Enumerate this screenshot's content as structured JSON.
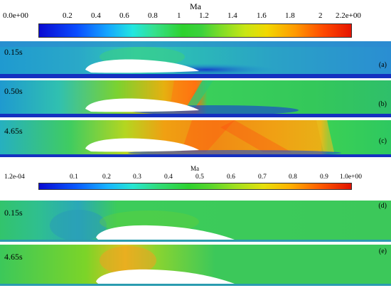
{
  "colorbar_top": {
    "title": "Ma",
    "ticks": [
      "0.0e+00",
      "0.2",
      "0.4",
      "0.6",
      "0.8",
      "1",
      "1.2",
      "1.4",
      "1.6",
      "1.8",
      "2",
      "2.2e+00"
    ]
  },
  "colorbar_bottom": {
    "title": "Ma",
    "ticks": [
      "1.2e-04",
      "0.1",
      "0.2",
      "0.3",
      "0.4",
      "0.5",
      "0.6",
      "0.7",
      "0.8",
      "0.9",
      "1.0e+00"
    ]
  },
  "panels": [
    {
      "time": "0.15s",
      "letter": "(a)"
    },
    {
      "time": "0.50s",
      "letter": "(b)"
    },
    {
      "time": "4.65s",
      "letter": "(c)"
    },
    {
      "time": "0.15s",
      "letter": "(d)"
    },
    {
      "time": "4.65s",
      "letter": "(e)"
    }
  ]
}
